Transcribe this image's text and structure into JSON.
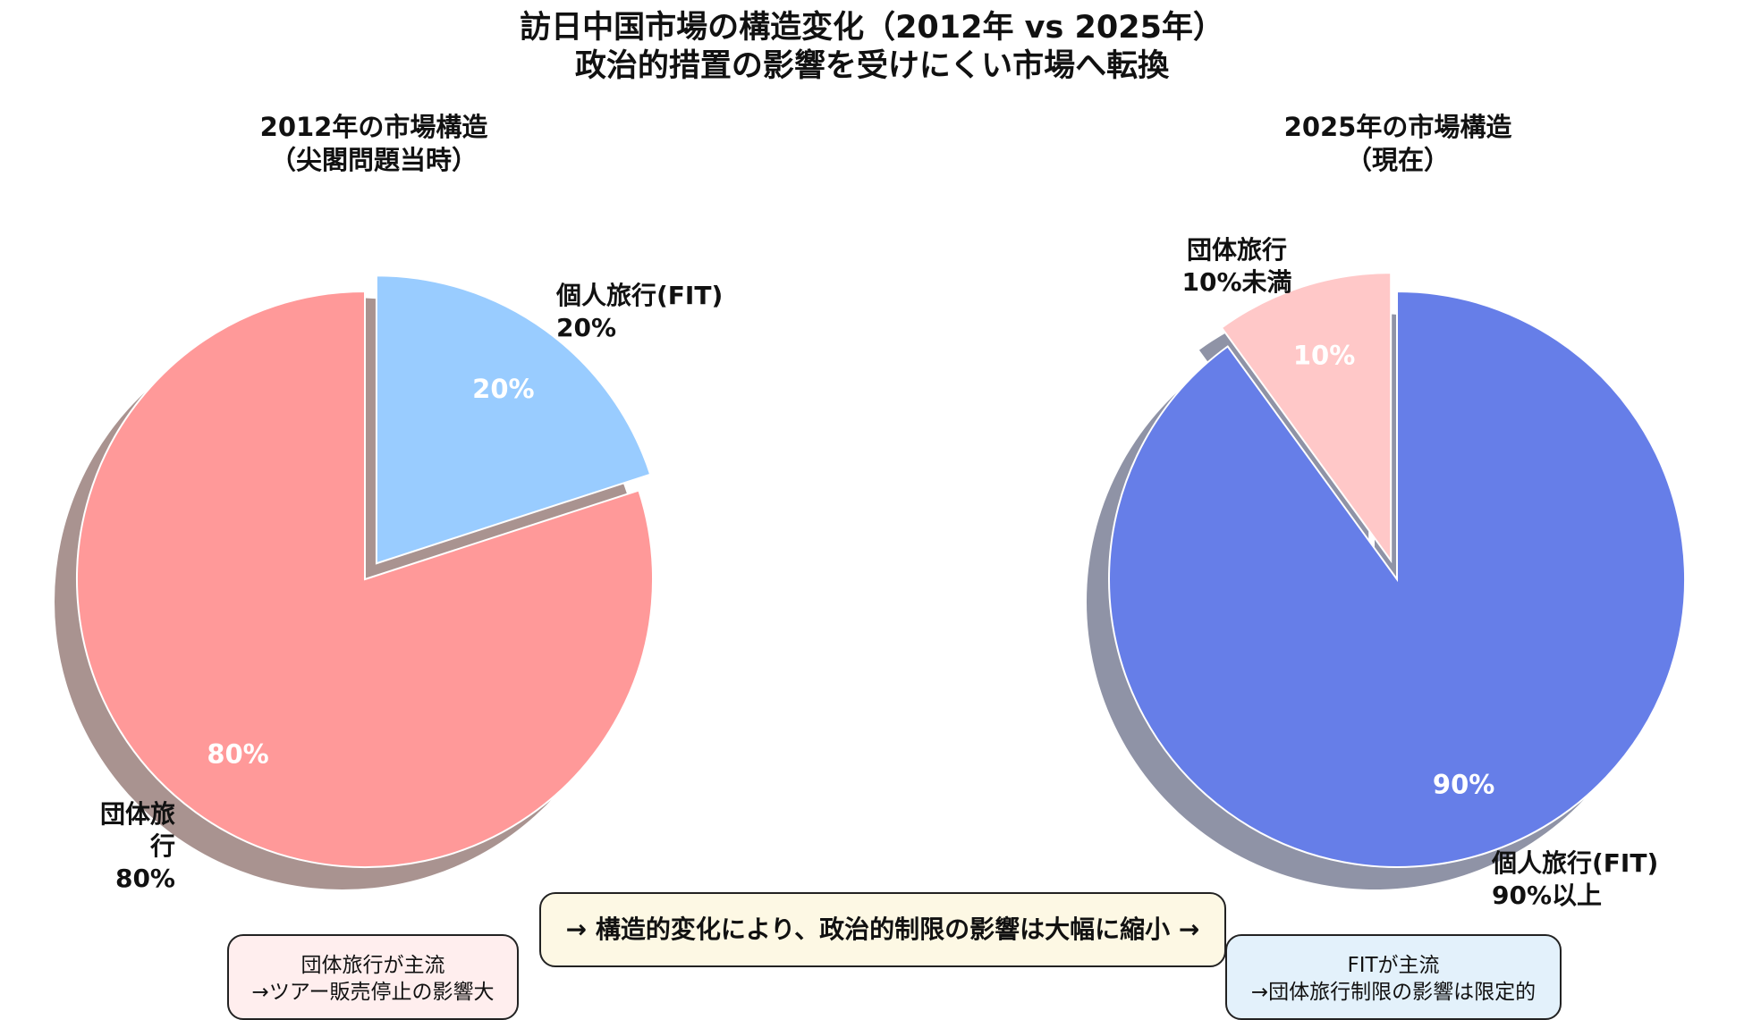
{
  "title_line1": "訪日中国市場の構造変化（2012年 vs 2025年）",
  "title_line2": "政治的措置の影響を受けにくい市場へ転換",
  "chart_data": [
    {
      "type": "pie",
      "title_line1": "2012年の市場構造",
      "title_line2": "（尖閣問題当時）",
      "slices": [
        {
          "name": "個人旅行(FIT)",
          "value": 20,
          "inner_label": "20%",
          "outer_line1": "個人旅行(FIT)",
          "outer_line2": "20%",
          "color": "#99ccff",
          "exploded": true
        },
        {
          "name": "団体旅行",
          "value": 80,
          "inner_label": "80%",
          "outer_line1": "団体旅行",
          "outer_line2": "80%",
          "color": "#ff9999",
          "exploded": false
        }
      ]
    },
    {
      "type": "pie",
      "title_line1": "2025年の市場構造",
      "title_line2": "（現在）",
      "slices": [
        {
          "name": "個人旅行(FIT)",
          "value": 90,
          "inner_label": "90%",
          "outer_line1": "個人旅行(FIT)",
          "outer_line2": "90%以上",
          "color": "#667ee8",
          "exploded": false
        },
        {
          "name": "団体旅行",
          "value": 10,
          "inner_label": "10%",
          "outer_line1": "団体旅行",
          "outer_line2": "10%未満",
          "color": "#ffc8c8",
          "exploded": true
        }
      ]
    }
  ],
  "annotations": {
    "left_box_line1": "団体旅行が主流",
    "left_box_line2": "→ツアー販売停止の影響大",
    "center_box": "→ 構造的変化により、政治的制限の影響は大幅に縮小 →",
    "right_box_line1": "FITが主流",
    "right_box_line2": "→団体旅行制限の影響は限定的"
  }
}
